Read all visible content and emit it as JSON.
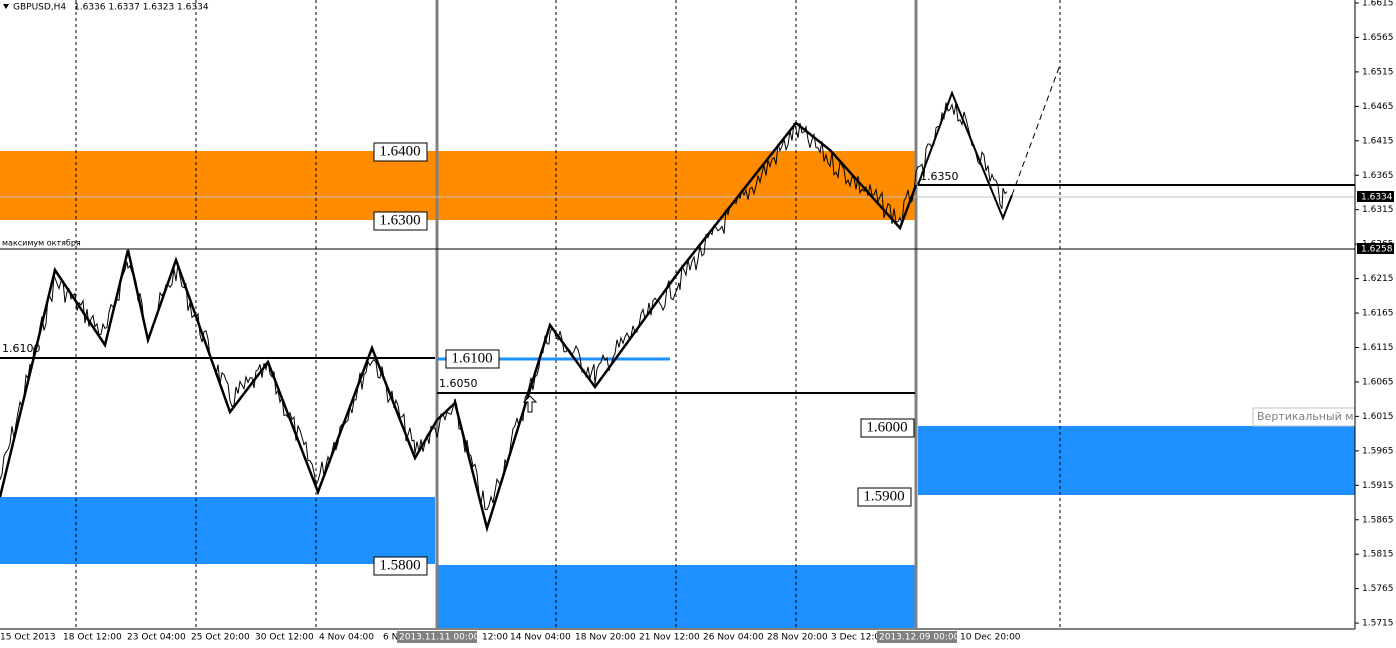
{
  "header": {
    "symbol": "GBPUSD,H4",
    "quote": "1.6336 1.6337 1.6323 1.6334"
  },
  "price_axis": {
    "labels": [
      "1.6615",
      "1.6565",
      "1.6515",
      "1.6465",
      "1.6415",
      "1.6365",
      "1.6315",
      "1.6265",
      "1.6215",
      "1.6165",
      "1.6115",
      "1.6065",
      "1.6015",
      "1.5965",
      "1.5915",
      "1.5865",
      "1.5815",
      "1.5765",
      "1.5715"
    ],
    "current": "1.6334",
    "marker": "1.6258"
  },
  "time_axis": {
    "labels": [
      "15 Oct 2013",
      "18 Oct 12:00",
      "23 Oct 04:00",
      "25 Oct 20:00",
      "30 Oct 12:00",
      "4 Nov 04:00",
      "6 N",
      "12:00",
      "14 Nov 04:00",
      "18 Nov 20:00",
      "21 Nov 12:00",
      "26 Nov 04:00",
      "28 Nov 20:00",
      "3 Dec 12:00",
      "10 Dec 20:00"
    ],
    "highlighted": [
      "2013.11.11 00:00",
      "2013.12.09 00:00"
    ]
  },
  "zones": [
    "1.6400",
    "1.6300",
    "1.5800",
    "1.6100",
    "1.6000",
    "1.5900"
  ],
  "lines": {
    "left": "1.6100",
    "middle": "1.6050",
    "right": "1.6350",
    "october_max": "максимум октября"
  },
  "tooltip": "Вертикальный мас"
}
